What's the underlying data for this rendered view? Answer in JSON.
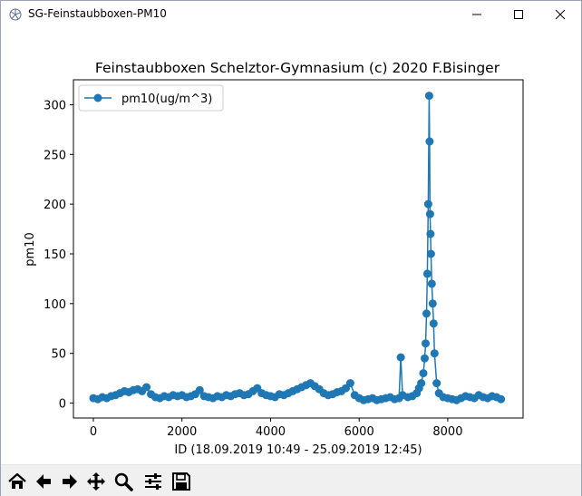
{
  "window": {
    "title": "SG-Feinstaubboxen-PM10",
    "icon": "matplotlib-icon",
    "controls": [
      "minimize-icon",
      "maximize-icon",
      "close-icon"
    ]
  },
  "chart_data": {
    "type": "line",
    "title": "Feinstaubboxen Schelztor-Gymnasium (c) 2020 F.Bisinger",
    "xlabel": "ID (18.09.2019 10:49 - 25.09.2019 12:45)",
    "ylabel": "pm10",
    "xlim": [
      -450,
      9700
    ],
    "ylim": [
      -15,
      325
    ],
    "xticks": [
      0,
      2000,
      4000,
      6000,
      8000
    ],
    "yticks": [
      0,
      50,
      100,
      150,
      200,
      250,
      300
    ],
    "grid": false,
    "legend": "top-left",
    "marker": "o",
    "color": "#1f77b4",
    "series": [
      {
        "name": "pm10(ug/m^3)",
        "x": [
          0,
          100,
          200,
          300,
          400,
          500,
          600,
          700,
          800,
          900,
          1000,
          1100,
          1200,
          1300,
          1400,
          1500,
          1600,
          1700,
          1800,
          1900,
          2000,
          2100,
          2200,
          2300,
          2400,
          2500,
          2600,
          2700,
          2800,
          2900,
          3000,
          3100,
          3200,
          3300,
          3400,
          3500,
          3600,
          3700,
          3800,
          3900,
          4000,
          4100,
          4200,
          4300,
          4400,
          4500,
          4600,
          4700,
          4800,
          4900,
          5000,
          5100,
          5200,
          5300,
          5400,
          5500,
          5600,
          5700,
          5800,
          5900,
          6000,
          6100,
          6200,
          6300,
          6400,
          6500,
          6600,
          6700,
          6800,
          6900,
          6940,
          6980,
          7100,
          7200,
          7300,
          7350,
          7400,
          7450,
          7480,
          7500,
          7520,
          7540,
          7560,
          7580,
          7590,
          7600,
          7610,
          7620,
          7640,
          7660,
          7680,
          7700,
          7750,
          7800,
          7900,
          8000,
          8100,
          8200,
          8300,
          8400,
          8500,
          8600,
          8700,
          8800,
          8900,
          9000,
          9100,
          9200
        ],
        "y": [
          5,
          4,
          6,
          5,
          7,
          8,
          10,
          12,
          11,
          13,
          14,
          12,
          16,
          9,
          6,
          5,
          7,
          6,
          8,
          7,
          8,
          6,
          7,
          9,
          13,
          7,
          6,
          5,
          7,
          6,
          8,
          7,
          9,
          10,
          8,
          9,
          12,
          15,
          10,
          8,
          7,
          6,
          9,
          8,
          10,
          12,
          14,
          16,
          18,
          20,
          17,
          14,
          10,
          8,
          9,
          11,
          12,
          15,
          20,
          8,
          5,
          3,
          4,
          5,
          3,
          4,
          5,
          6,
          4,
          5,
          46,
          8,
          6,
          7,
          10,
          15,
          20,
          30,
          45,
          60,
          90,
          130,
          200,
          309,
          263,
          190,
          170,
          150,
          120,
          100,
          80,
          50,
          20,
          10,
          6,
          5,
          4,
          3,
          5,
          7,
          6,
          5,
          8,
          6,
          5,
          7,
          6,
          4
        ]
      }
    ]
  },
  "toolbar": {
    "buttons": [
      {
        "name": "home-icon"
      },
      {
        "name": "back-icon"
      },
      {
        "name": "forward-icon"
      },
      {
        "name": "pan-icon"
      },
      {
        "name": "zoom-icon"
      },
      {
        "name": "configure-subplots-icon"
      },
      {
        "name": "save-icon"
      }
    ]
  }
}
